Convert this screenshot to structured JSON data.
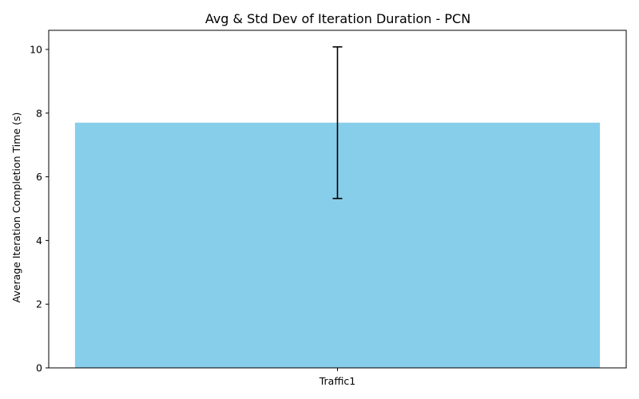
{
  "chart_data": {
    "type": "bar",
    "title": "Avg & Std Dev of Iteration Duration - PCN",
    "xlabel": "",
    "ylabel": "Average Iteration Completion Time (s)",
    "categories": [
      "Traffic1"
    ],
    "values": [
      7.7
    ],
    "error": [
      2.38
    ],
    "ylim": [
      0,
      10.6
    ],
    "yticks": [
      "0",
      "2",
      "4",
      "6",
      "8",
      "10"
    ],
    "grid": false,
    "bar_color": "#87CEEB",
    "error_color": "#000000"
  }
}
